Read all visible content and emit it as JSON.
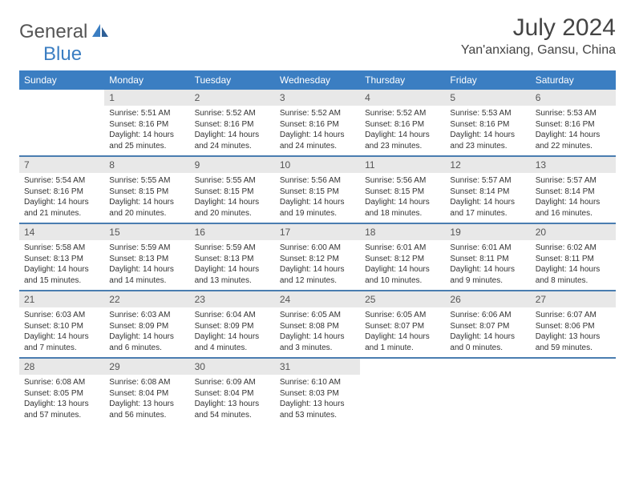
{
  "logo": {
    "text1": "General",
    "text2": "Blue"
  },
  "title": "July 2024",
  "location": "Yan'anxiang, Gansu, China",
  "colors": {
    "header_bg": "#3b7ec2",
    "daynum_bg": "#e8e8e8",
    "week_border": "#4a7db0",
    "text": "#333333"
  },
  "dayHeaders": [
    "Sunday",
    "Monday",
    "Tuesday",
    "Wednesday",
    "Thursday",
    "Friday",
    "Saturday"
  ],
  "weeks": [
    [
      {
        "day": "",
        "sunrise": "",
        "sunset": "",
        "daylight": ""
      },
      {
        "day": "1",
        "sunrise": "Sunrise: 5:51 AM",
        "sunset": "Sunset: 8:16 PM",
        "daylight": "Daylight: 14 hours and 25 minutes."
      },
      {
        "day": "2",
        "sunrise": "Sunrise: 5:52 AM",
        "sunset": "Sunset: 8:16 PM",
        "daylight": "Daylight: 14 hours and 24 minutes."
      },
      {
        "day": "3",
        "sunrise": "Sunrise: 5:52 AM",
        "sunset": "Sunset: 8:16 PM",
        "daylight": "Daylight: 14 hours and 24 minutes."
      },
      {
        "day": "4",
        "sunrise": "Sunrise: 5:52 AM",
        "sunset": "Sunset: 8:16 PM",
        "daylight": "Daylight: 14 hours and 23 minutes."
      },
      {
        "day": "5",
        "sunrise": "Sunrise: 5:53 AM",
        "sunset": "Sunset: 8:16 PM",
        "daylight": "Daylight: 14 hours and 23 minutes."
      },
      {
        "day": "6",
        "sunrise": "Sunrise: 5:53 AM",
        "sunset": "Sunset: 8:16 PM",
        "daylight": "Daylight: 14 hours and 22 minutes."
      }
    ],
    [
      {
        "day": "7",
        "sunrise": "Sunrise: 5:54 AM",
        "sunset": "Sunset: 8:16 PM",
        "daylight": "Daylight: 14 hours and 21 minutes."
      },
      {
        "day": "8",
        "sunrise": "Sunrise: 5:55 AM",
        "sunset": "Sunset: 8:15 PM",
        "daylight": "Daylight: 14 hours and 20 minutes."
      },
      {
        "day": "9",
        "sunrise": "Sunrise: 5:55 AM",
        "sunset": "Sunset: 8:15 PM",
        "daylight": "Daylight: 14 hours and 20 minutes."
      },
      {
        "day": "10",
        "sunrise": "Sunrise: 5:56 AM",
        "sunset": "Sunset: 8:15 PM",
        "daylight": "Daylight: 14 hours and 19 minutes."
      },
      {
        "day": "11",
        "sunrise": "Sunrise: 5:56 AM",
        "sunset": "Sunset: 8:15 PM",
        "daylight": "Daylight: 14 hours and 18 minutes."
      },
      {
        "day": "12",
        "sunrise": "Sunrise: 5:57 AM",
        "sunset": "Sunset: 8:14 PM",
        "daylight": "Daylight: 14 hours and 17 minutes."
      },
      {
        "day": "13",
        "sunrise": "Sunrise: 5:57 AM",
        "sunset": "Sunset: 8:14 PM",
        "daylight": "Daylight: 14 hours and 16 minutes."
      }
    ],
    [
      {
        "day": "14",
        "sunrise": "Sunrise: 5:58 AM",
        "sunset": "Sunset: 8:13 PM",
        "daylight": "Daylight: 14 hours and 15 minutes."
      },
      {
        "day": "15",
        "sunrise": "Sunrise: 5:59 AM",
        "sunset": "Sunset: 8:13 PM",
        "daylight": "Daylight: 14 hours and 14 minutes."
      },
      {
        "day": "16",
        "sunrise": "Sunrise: 5:59 AM",
        "sunset": "Sunset: 8:13 PM",
        "daylight": "Daylight: 14 hours and 13 minutes."
      },
      {
        "day": "17",
        "sunrise": "Sunrise: 6:00 AM",
        "sunset": "Sunset: 8:12 PM",
        "daylight": "Daylight: 14 hours and 12 minutes."
      },
      {
        "day": "18",
        "sunrise": "Sunrise: 6:01 AM",
        "sunset": "Sunset: 8:12 PM",
        "daylight": "Daylight: 14 hours and 10 minutes."
      },
      {
        "day": "19",
        "sunrise": "Sunrise: 6:01 AM",
        "sunset": "Sunset: 8:11 PM",
        "daylight": "Daylight: 14 hours and 9 minutes."
      },
      {
        "day": "20",
        "sunrise": "Sunrise: 6:02 AM",
        "sunset": "Sunset: 8:11 PM",
        "daylight": "Daylight: 14 hours and 8 minutes."
      }
    ],
    [
      {
        "day": "21",
        "sunrise": "Sunrise: 6:03 AM",
        "sunset": "Sunset: 8:10 PM",
        "daylight": "Daylight: 14 hours and 7 minutes."
      },
      {
        "day": "22",
        "sunrise": "Sunrise: 6:03 AM",
        "sunset": "Sunset: 8:09 PM",
        "daylight": "Daylight: 14 hours and 6 minutes."
      },
      {
        "day": "23",
        "sunrise": "Sunrise: 6:04 AM",
        "sunset": "Sunset: 8:09 PM",
        "daylight": "Daylight: 14 hours and 4 minutes."
      },
      {
        "day": "24",
        "sunrise": "Sunrise: 6:05 AM",
        "sunset": "Sunset: 8:08 PM",
        "daylight": "Daylight: 14 hours and 3 minutes."
      },
      {
        "day": "25",
        "sunrise": "Sunrise: 6:05 AM",
        "sunset": "Sunset: 8:07 PM",
        "daylight": "Daylight: 14 hours and 1 minute."
      },
      {
        "day": "26",
        "sunrise": "Sunrise: 6:06 AM",
        "sunset": "Sunset: 8:07 PM",
        "daylight": "Daylight: 14 hours and 0 minutes."
      },
      {
        "day": "27",
        "sunrise": "Sunrise: 6:07 AM",
        "sunset": "Sunset: 8:06 PM",
        "daylight": "Daylight: 13 hours and 59 minutes."
      }
    ],
    [
      {
        "day": "28",
        "sunrise": "Sunrise: 6:08 AM",
        "sunset": "Sunset: 8:05 PM",
        "daylight": "Daylight: 13 hours and 57 minutes."
      },
      {
        "day": "29",
        "sunrise": "Sunrise: 6:08 AM",
        "sunset": "Sunset: 8:04 PM",
        "daylight": "Daylight: 13 hours and 56 minutes."
      },
      {
        "day": "30",
        "sunrise": "Sunrise: 6:09 AM",
        "sunset": "Sunset: 8:04 PM",
        "daylight": "Daylight: 13 hours and 54 minutes."
      },
      {
        "day": "31",
        "sunrise": "Sunrise: 6:10 AM",
        "sunset": "Sunset: 8:03 PM",
        "daylight": "Daylight: 13 hours and 53 minutes."
      },
      {
        "day": "",
        "sunrise": "",
        "sunset": "",
        "daylight": ""
      },
      {
        "day": "",
        "sunrise": "",
        "sunset": "",
        "daylight": ""
      },
      {
        "day": "",
        "sunrise": "",
        "sunset": "",
        "daylight": ""
      }
    ]
  ]
}
